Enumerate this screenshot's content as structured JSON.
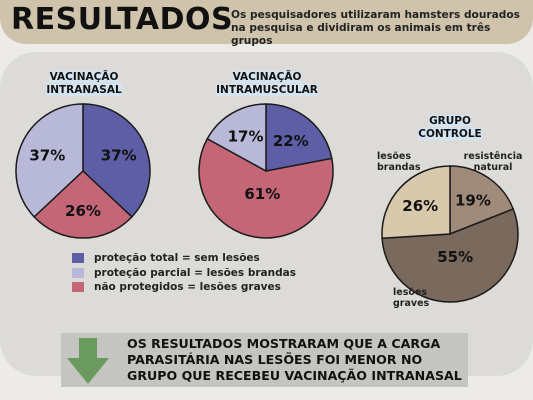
{
  "header": {
    "title": "RESULTADOS",
    "subtitle": "Os pesquisadores utilizaram hamsters dourados na pesquisa e dividiram os animais em três grupos"
  },
  "colors": {
    "total": "#5e5ea6",
    "parcial": "#b8b8d8",
    "graves": "#c46676",
    "resistencia": "#a08b7a",
    "brandas_controle": "#d8c9ad",
    "graves_controle": "#7a6a5e",
    "arrow": "#6b9a5e"
  },
  "chart_data": [
    {
      "type": "pie",
      "title": "VACINAÇÃO INTRANASAL",
      "slices": [
        {
          "label": "proteção total = sem lesões",
          "value": 37,
          "text": "37%"
        },
        {
          "label": "não protegidos = lesões graves",
          "value": 26,
          "text": "26%"
        },
        {
          "label": "proteção parcial = lesões brandas",
          "value": 37,
          "text": "37%"
        }
      ]
    },
    {
      "type": "pie",
      "title": "VACINAÇÃO INTRAMUSCULAR",
      "slices": [
        {
          "label": "proteção total = sem lesões",
          "value": 22,
          "text": "22%"
        },
        {
          "label": "não protegidos = lesões graves",
          "value": 61,
          "text": "61%"
        },
        {
          "label": "proteção parcial = lesões brandas",
          "value": 17,
          "text": "17%"
        }
      ]
    },
    {
      "type": "pie",
      "title": "GRUPO CONTROLE",
      "slices": [
        {
          "label": "resistência natural",
          "value": 19,
          "text": "19%"
        },
        {
          "label": "lesões graves",
          "value": 55,
          "text": "55%"
        },
        {
          "label": "lesões brandas",
          "value": 26,
          "text": "26%"
        }
      ]
    }
  ],
  "chart_titles": {
    "intranasal_line1": "VACINAÇÃO",
    "intranasal_line2": "INTRANASAL",
    "intramuscular_line1": "VACINAÇÃO",
    "intramuscular_line2": "INTRAMUSCULAR",
    "controle_line1": "GRUPO",
    "controle_line2": "CONTROLE"
  },
  "control_notes": {
    "brandas_line1": "lesões",
    "brandas_line2": "brandas",
    "resistencia_line1": "resistência",
    "resistencia_line2": "natural",
    "graves_line1": "lesões",
    "graves_line2": "graves"
  },
  "legend": [
    {
      "label": "proteção total = sem lesões",
      "color": "#5e5ea6"
    },
    {
      "label": "proteção parcial = lesões brandas",
      "color": "#b8b8d8"
    },
    {
      "label": "não protegidos = lesões graves",
      "color": "#c46676"
    }
  ],
  "banner": {
    "line1": "OS RESULTADOS MOSTRARAM QUE A CARGA",
    "line2": "PARASITÁRIA NAS LESÕES FOI MENOR NO",
    "line3": "GRUPO QUE RECEBEU VACINAÇÃO INTRANASAL"
  }
}
